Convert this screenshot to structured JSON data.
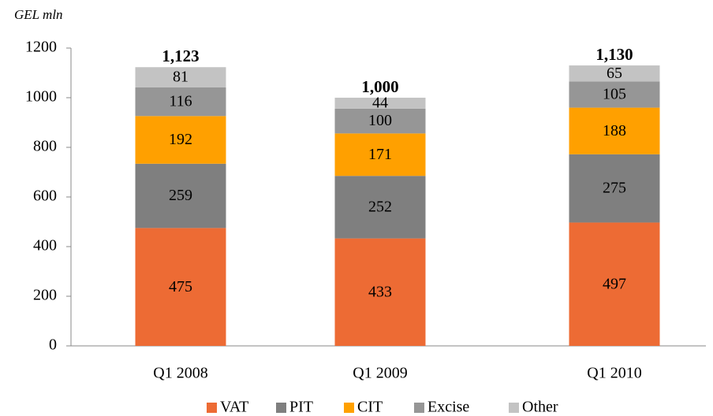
{
  "chart_data": {
    "type": "stacked_bar",
    "y_axis_label": "GEL mln",
    "categories": [
      "Q1 2008",
      "Q1 2009",
      "Q1 2010"
    ],
    "series": [
      {
        "name": "VAT",
        "color": "#ed6b34",
        "values": [
          475,
          433,
          497
        ]
      },
      {
        "name": "PIT",
        "color": "#7f7f7f",
        "values": [
          259,
          252,
          275
        ]
      },
      {
        "name": "CIT",
        "color": "#ffa000",
        "values": [
          192,
          171,
          188
        ]
      },
      {
        "name": "Excise",
        "color": "#969696",
        "values": [
          116,
          100,
          105
        ]
      },
      {
        "name": "Other",
        "color": "#c3c3c3",
        "values": [
          81,
          44,
          65
        ]
      }
    ],
    "totals": {
      "values": [
        1123,
        1000,
        1130
      ],
      "value_labels": [
        "1,123",
        "1,000",
        "1,130"
      ]
    },
    "ylim": [
      0,
      1200
    ],
    "yticks": [
      0,
      200,
      400,
      600,
      800,
      1000,
      1200
    ],
    "legend": "bottom"
  }
}
